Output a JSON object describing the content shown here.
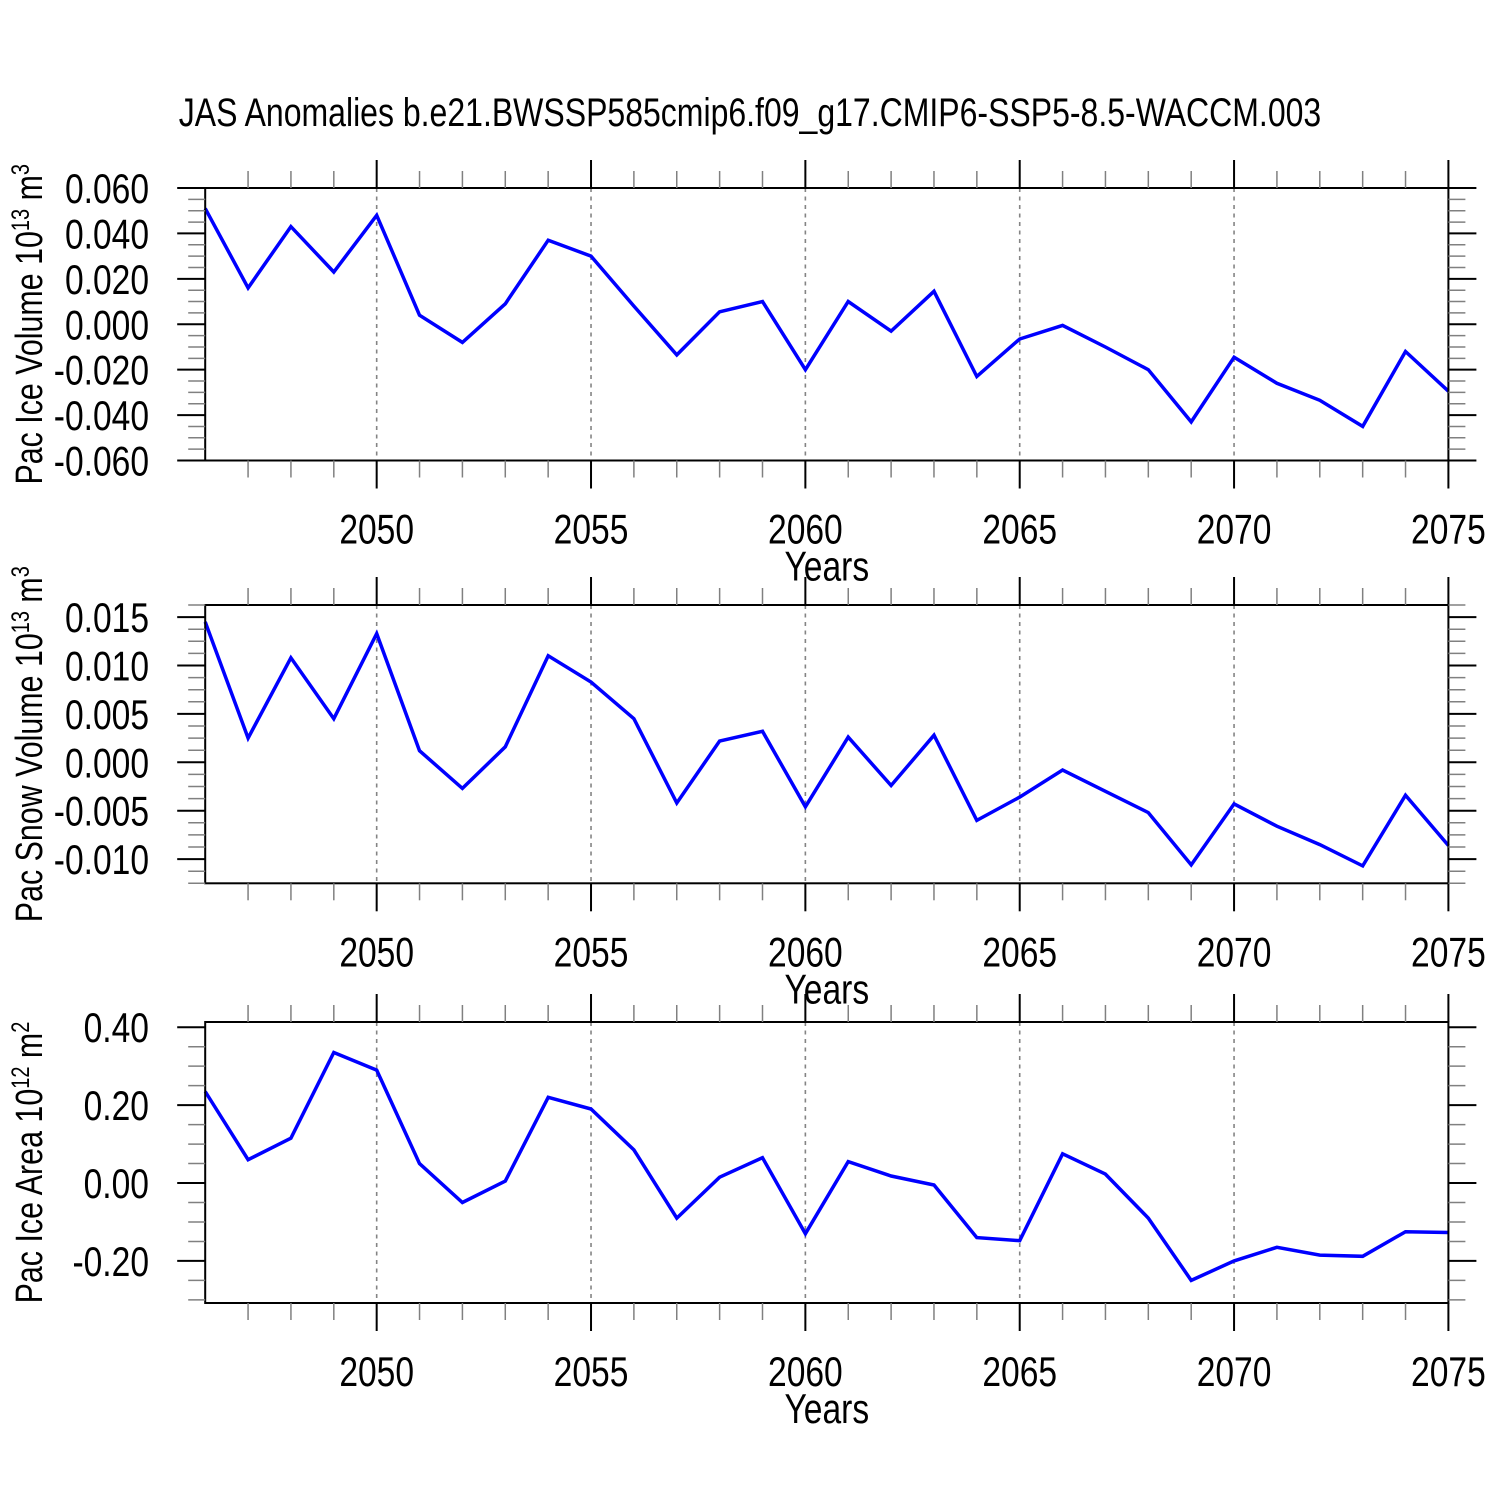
{
  "title": "JAS Anomalies b.e21.BWSSP585cmip6.f09_g17.CMIP6-SSP5-8.5-WACCM.003",
  "colors": {
    "line": "#0000ff",
    "axis": "#000000",
    "minor_tick": "#808080",
    "gridline": "#848484",
    "text": "#000000",
    "background": "#ffffff"
  },
  "x_axis": {
    "label": "Years",
    "range": [
      2046,
      2075
    ],
    "years": [
      2046,
      2047,
      2048,
      2049,
      2050,
      2051,
      2052,
      2053,
      2054,
      2055,
      2056,
      2057,
      2058,
      2059,
      2060,
      2061,
      2062,
      2063,
      2064,
      2065,
      2066,
      2067,
      2068,
      2069,
      2070,
      2071,
      2072,
      2073,
      2074,
      2075
    ],
    "major_ticks": [
      2050,
      2055,
      2060,
      2065,
      2070,
      2075
    ],
    "major_tick_labels": [
      "2050",
      "2055",
      "2060",
      "2065",
      "2070",
      "2075"
    ],
    "gridline_years": [
      2050,
      2055,
      2060,
      2065,
      2070
    ],
    "gridline_style": "dashed"
  },
  "chart_data": [
    {
      "type": "line",
      "name": "pac-ice-volume",
      "ylabel": "Pac Ice Volume 10^13 m^3",
      "ylabel_rich": [
        [
          "t",
          "Pac Ice Volume 10"
        ],
        [
          "s",
          "13"
        ],
        [
          "t",
          " m"
        ],
        [
          "s",
          "3"
        ]
      ],
      "ylim": [
        -0.06,
        0.06
      ],
      "ytick_major": [
        0.06,
        0.04,
        0.02,
        0.0,
        -0.02,
        -0.04,
        -0.06
      ],
      "ytick_labels": [
        "0.060",
        "0.040",
        "0.020",
        "0.000",
        "-0.020",
        "-0.040",
        "-0.060"
      ],
      "ytick_minor_step": 0.005,
      "values": [
        0.051,
        0.016,
        0.043,
        0.023,
        0.048,
        0.004,
        -0.008,
        0.009,
        0.037,
        0.03,
        0.008,
        -0.0135,
        0.0055,
        0.01,
        -0.02,
        0.01,
        -0.003,
        0.0145,
        -0.023,
        -0.0065,
        -0.0005,
        -0.01,
        -0.02,
        -0.043,
        -0.0145,
        -0.026,
        -0.0335,
        -0.045,
        -0.012,
        -0.0295
      ]
    },
    {
      "type": "line",
      "name": "pac-snow-volume",
      "ylabel": "Pac Snow Volume 10^13 m^3",
      "ylabel_rich": [
        [
          "t",
          "Pac Snow Volume 10"
        ],
        [
          "s",
          "13"
        ],
        [
          "t",
          " m"
        ],
        [
          "s",
          "3"
        ]
      ],
      "ylim": [
        -0.0125,
        0.01625
      ],
      "ytick_major": [
        0.015,
        0.01,
        0.005,
        0.0,
        -0.005,
        -0.01
      ],
      "ytick_labels": [
        "0.015",
        "0.010",
        "0.005",
        "0.000",
        "-0.005",
        "-0.010"
      ],
      "ytick_minor_step": 0.00125,
      "values": [
        0.0145,
        0.0025,
        0.0108,
        0.0045,
        0.0133,
        0.0012,
        -0.0027,
        0.0016,
        0.011,
        0.0083,
        0.0045,
        -0.0042,
        0.0022,
        0.0032,
        -0.0046,
        0.0026,
        -0.0024,
        0.0028,
        -0.006,
        -0.0036,
        -0.0008,
        -0.003,
        -0.0052,
        -0.0106,
        -0.0043,
        -0.0066,
        -0.0085,
        -0.0107,
        -0.0034,
        -0.0086
      ]
    },
    {
      "type": "line",
      "name": "pac-ice-area",
      "ylabel": "Pac Ice Area 10^12 m^2",
      "ylabel_rich": [
        [
          "t",
          "Pac Ice Area 10"
        ],
        [
          "s",
          "12"
        ],
        [
          "t",
          " m"
        ],
        [
          "s",
          "2"
        ]
      ],
      "ylim": [
        -0.308,
        0.4134
      ],
      "ytick_major": [
        0.4,
        0.2,
        0.0,
        -0.2
      ],
      "ytick_labels": [
        "0.40",
        "0.20",
        "0.00",
        "-0.20"
      ],
      "ytick_minor_step": 0.05,
      "values": [
        0.235,
        0.06,
        0.115,
        0.335,
        0.29,
        0.05,
        -0.05,
        0.005,
        0.22,
        0.19,
        0.085,
        -0.09,
        0.015,
        0.065,
        -0.13,
        0.055,
        0.018,
        -0.005,
        -0.14,
        -0.148,
        0.075,
        0.023,
        -0.09,
        -0.25,
        -0.2,
        -0.165,
        -0.185,
        -0.188,
        -0.125,
        -0.127
      ]
    }
  ]
}
